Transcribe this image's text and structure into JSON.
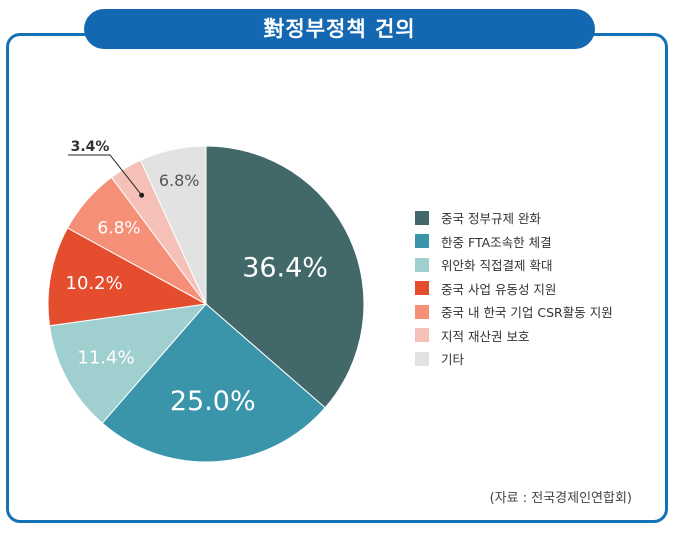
{
  "header": {
    "title": "對정부정책 건의"
  },
  "chart_data": {
    "type": "pie",
    "title": "對정부정책 건의",
    "start_angle_deg": 0,
    "direction": "clockwise",
    "slices": [
      {
        "label": "중국 정부규제 완화",
        "value": 36.4,
        "display": "36.4%",
        "color": "#43686a"
      },
      {
        "label": "한중 FTA조속한 체결",
        "value": 25.0,
        "display": "25.0%",
        "color": "#3a95ab"
      },
      {
        "label": "위안화 직접결제 확대",
        "value": 11.4,
        "display": "11.4%",
        "color": "#9fcfcf"
      },
      {
        "label": "중국 사업 유동성 지원",
        "value": 10.2,
        "display": "10.2%",
        "color": "#e44d2e"
      },
      {
        "label": "중국 내 한국 기업 CSR활동 지원",
        "value": 6.8,
        "display": "6.8%",
        "color": "#f58f78"
      },
      {
        "label": "지적 재산권 보호",
        "value": 3.4,
        "display": "3.4%",
        "color": "#f4c0b7"
      },
      {
        "label": "기타",
        "value": 6.8,
        "display": "6.8%",
        "color": "#e2e2e2"
      }
    ],
    "legend_position": "right"
  },
  "source": "(자료 : 전국경제인연합회)"
}
